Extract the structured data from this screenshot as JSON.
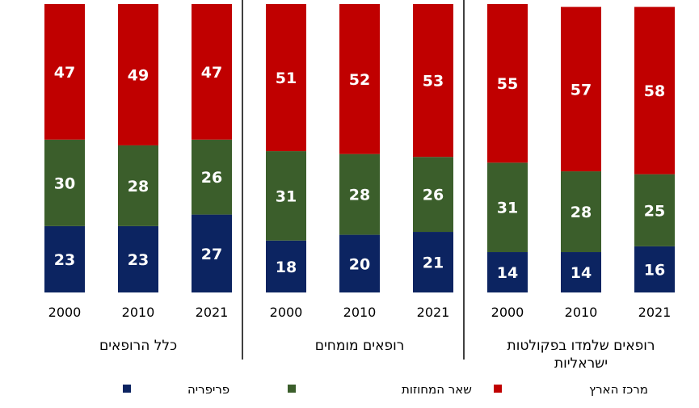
{
  "colors": {
    "periphery": "#0c2461",
    "other": "#3b5e2b",
    "center": "#c00000",
    "divider": "#000000"
  },
  "chart_data": {
    "type": "bar",
    "stacked": true,
    "ylim": [
      0,
      100
    ],
    "categories": [
      "2000",
      "2010",
      "2021"
    ],
    "groups": [
      {
        "label": "כלל הרופאים",
        "series": [
          {
            "name": "פריפריה",
            "values": [
              23,
              23,
              27
            ]
          },
          {
            "name": "שאר המחוזות",
            "values": [
              30,
              28,
              26
            ]
          },
          {
            "name": "מרכז הארץ",
            "values": [
              47,
              49,
              47
            ]
          }
        ]
      },
      {
        "label": "רופאים מומחים",
        "series": [
          {
            "name": "פריפריה",
            "values": [
              18,
              20,
              21
            ]
          },
          {
            "name": "שאר המחוזות",
            "values": [
              31,
              28,
              26
            ]
          },
          {
            "name": "מרכז הארץ",
            "values": [
              51,
              52,
              53
            ]
          }
        ]
      },
      {
        "label": "רופאים שלמדו בפקולטות ישראליות",
        "label_lines": [
          "רופאים שלמדו בפקולטות",
          "ישראליות"
        ],
        "series": [
          {
            "name": "פריפריה",
            "values": [
              14,
              14,
              16
            ]
          },
          {
            "name": "שאר המחוזות",
            "values": [
              31,
              28,
              25
            ]
          },
          {
            "name": "מרכז הארץ",
            "values": [
              55,
              57,
              58
            ]
          }
        ]
      }
    ],
    "legend": {
      "placement": "bottom",
      "entries": [
        "פריפריה",
        "שאר המחוזות",
        "מרכז הארץ"
      ]
    }
  }
}
